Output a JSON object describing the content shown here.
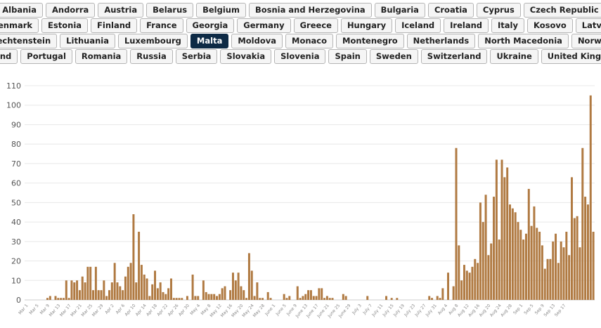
{
  "countries": [
    [
      "Albania",
      "Andorra",
      "Austria",
      "Belarus",
      "Belgium",
      "Bosnia and Herzegovina",
      "Bulgaria",
      "Croatia",
      "Cyprus",
      "Czech Republic"
    ],
    [
      "Denmark",
      "Estonia",
      "Finland",
      "France",
      "Georgia",
      "Germany",
      "Greece",
      "Hungary",
      "Iceland",
      "Ireland",
      "Italy",
      "Kosovo",
      "Latvia"
    ],
    [
      "Liechtenstein",
      "Lithuania",
      "Luxembourg",
      "Malta",
      "Moldova",
      "Monaco",
      "Montenegro",
      "Netherlands",
      "North Macedonia",
      "Norway"
    ],
    [
      "Poland",
      "Portugal",
      "Romania",
      "Russia",
      "Serbia",
      "Slovakia",
      "Slovenia",
      "Spain",
      "Sweden",
      "Switzerland",
      "Ukraine",
      "United Kingdom"
    ]
  ],
  "selected_country": "Malta",
  "colors": {
    "bar": "#b07a42",
    "active_button": "#0d2a45",
    "grid": "#e8e8e8"
  },
  "chart_data": {
    "type": "bar",
    "ylim": [
      0,
      110
    ],
    "y_ticks": [
      0,
      10,
      20,
      30,
      40,
      50,
      60,
      70,
      80,
      90,
      100,
      110
    ],
    "x_tick_labels": [
      "Mar 1",
      "Mar 5",
      "Mar 9",
      "Mar 13",
      "Mar 17",
      "Mar 21",
      "Mar 25",
      "Mar 29",
      "Apr 2",
      "Apr 6",
      "Apr 10",
      "Apr 14",
      "Apr 18",
      "Apr 22",
      "Apr 26",
      "Apr 30",
      "May 4",
      "May 8",
      "May 12",
      "May 16",
      "May 20",
      "May 24",
      "May 28",
      "June 1",
      "June 5",
      "June 9",
      "June 13",
      "June 17",
      "June 21",
      "June 25",
      "June 29",
      "July 3",
      "July 7",
      "July 11",
      "July 15",
      "July 19",
      "July 23",
      "July 27",
      "July 31",
      "Aug 4",
      "Aug 8",
      "Aug 12",
      "Aug 16",
      "Aug 20",
      "Aug 24",
      "Aug 28",
      "Sep 1",
      "Sep 5",
      "Sep 9",
      "Sep 13",
      "Sep 17"
    ],
    "x_tick_every": 4,
    "values": [
      0,
      0,
      0,
      0,
      0,
      0,
      0,
      0,
      1,
      2,
      0,
      2,
      1,
      1,
      1,
      10,
      1,
      10,
      9,
      10,
      5,
      12,
      9,
      17,
      17,
      5,
      17,
      5,
      5,
      10,
      2,
      5,
      9,
      19,
      9,
      7,
      5,
      12,
      17,
      19,
      44,
      9,
      35,
      18,
      13,
      11,
      2,
      8,
      15,
      6,
      9,
      4,
      3,
      6,
      11,
      1,
      1,
      1,
      1,
      0,
      2,
      0,
      13,
      2,
      2,
      0,
      10,
      4,
      3,
      3,
      3,
      2,
      3,
      6,
      7,
      0,
      5,
      14,
      10,
      14,
      7,
      5,
      1,
      24,
      15,
      2,
      9,
      1,
      1,
      0,
      4,
      1,
      0,
      0,
      0,
      0,
      3,
      1,
      2,
      0,
      0,
      7,
      1,
      2,
      3,
      5,
      5,
      2,
      2,
      6,
      6,
      1,
      2,
      1,
      1,
      0,
      0,
      0,
      3,
      2,
      0,
      0,
      0,
      0,
      0,
      0,
      0,
      2,
      0,
      0,
      0,
      0,
      0,
      0,
      2,
      0,
      1,
      0,
      1,
      0,
      0,
      0,
      0,
      0,
      0,
      0,
      0,
      0,
      0,
      0,
      2,
      1,
      0,
      2,
      1,
      6,
      0,
      14,
      0,
      7,
      78,
      28,
      10,
      18,
      15,
      14,
      17,
      21,
      19,
      50,
      40,
      54,
      23,
      29,
      53,
      72,
      31,
      72,
      63,
      68,
      49,
      47,
      45,
      40,
      36,
      31,
      34,
      57,
      38,
      48,
      37,
      35,
      28,
      16,
      21,
      21,
      30,
      34,
      19,
      30,
      27,
      35,
      23,
      63,
      42,
      43,
      27,
      78,
      53,
      49,
      105,
      35
    ]
  }
}
